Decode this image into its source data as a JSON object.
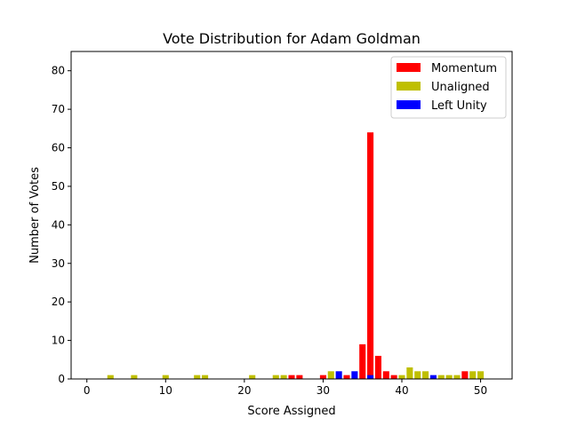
{
  "chart_data": {
    "type": "bar",
    "title": "Vote Distribution for Adam Goldman",
    "xlabel": "Score Assigned",
    "ylabel": "Number of Votes",
    "xlim": [
      -2,
      54
    ],
    "ylim": [
      0,
      85
    ],
    "xticks": [
      0,
      10,
      20,
      30,
      40,
      50
    ],
    "yticks": [
      0,
      10,
      20,
      30,
      40,
      50,
      60,
      70,
      80
    ],
    "grid": false,
    "legend_position": "top-right",
    "series": [
      {
        "name": "Momentum",
        "color": "#ff0000",
        "points": [
          {
            "x": 26,
            "y": 1
          },
          {
            "x": 27,
            "y": 1
          },
          {
            "x": 30,
            "y": 1
          },
          {
            "x": 33,
            "y": 1
          },
          {
            "x": 35,
            "y": 9
          },
          {
            "x": 36,
            "y": 64
          },
          {
            "x": 37,
            "y": 6
          },
          {
            "x": 38,
            "y": 2
          },
          {
            "x": 39,
            "y": 1
          },
          {
            "x": 48,
            "y": 2
          }
        ]
      },
      {
        "name": "Unaligned",
        "color": "#bfbf00",
        "points": [
          {
            "x": 3,
            "y": 1
          },
          {
            "x": 6,
            "y": 1
          },
          {
            "x": 10,
            "y": 1
          },
          {
            "x": 14,
            "y": 1
          },
          {
            "x": 15,
            "y": 1
          },
          {
            "x": 21,
            "y": 1
          },
          {
            "x": 24,
            "y": 1
          },
          {
            "x": 25,
            "y": 1
          },
          {
            "x": 31,
            "y": 2
          },
          {
            "x": 40,
            "y": 1
          },
          {
            "x": 41,
            "y": 3
          },
          {
            "x": 42,
            "y": 2
          },
          {
            "x": 43,
            "y": 2
          },
          {
            "x": 45,
            "y": 1
          },
          {
            "x": 46,
            "y": 1
          },
          {
            "x": 47,
            "y": 1
          },
          {
            "x": 49,
            "y": 2
          },
          {
            "x": 50,
            "y": 2
          }
        ]
      },
      {
        "name": "Left Unity",
        "color": "#0000ff",
        "points": [
          {
            "x": 32,
            "y": 2
          },
          {
            "x": 34,
            "y": 2
          },
          {
            "x": 36,
            "y": 1
          },
          {
            "x": 44,
            "y": 1
          }
        ]
      }
    ]
  }
}
